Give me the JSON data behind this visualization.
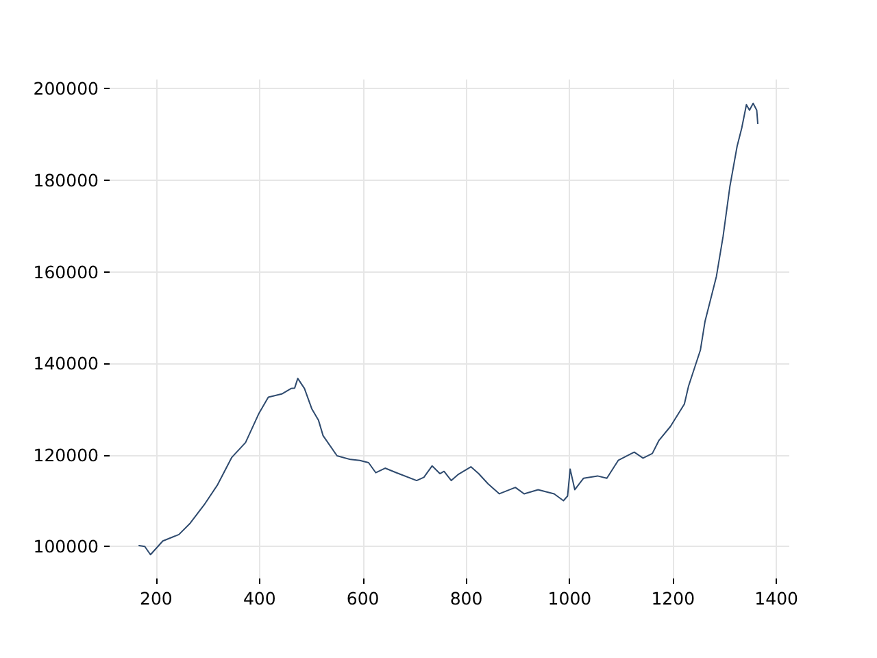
{
  "chart_data": {
    "type": "line",
    "color": "#2e4a6e",
    "grid": true,
    "marker": "none",
    "line_style": "solid",
    "xlim": [
      110,
      1425
    ],
    "xticks": [
      200,
      400,
      600,
      800,
      1000,
      1200,
      1400
    ],
    "ylim": [
      93000,
      202000
    ],
    "yticks": [
      100000,
      120000,
      140000,
      160000,
      180000,
      200000
    ],
    "x": [
      167,
      178,
      189,
      213,
      244,
      266,
      293,
      319,
      346,
      373,
      399,
      417,
      443,
      461,
      468,
      474,
      487,
      501,
      514,
      523,
      550,
      576,
      594,
      611,
      625,
      643,
      665,
      704,
      718,
      734,
      749,
      757,
      771,
      784,
      809,
      824,
      842,
      864,
      895,
      912,
      939,
      970,
      988,
      996,
      1001,
      1010,
      1027,
      1054,
      1072,
      1094,
      1125,
      1142,
      1160,
      1173,
      1195,
      1222,
      1230,
      1253,
      1262,
      1284,
      1297,
      1310,
      1324,
      1333,
      1342,
      1348,
      1355,
      1362,
      1364
    ],
    "values": [
      100200,
      100000,
      98200,
      101200,
      102600,
      105100,
      109100,
      113500,
      119400,
      122700,
      129100,
      132600,
      133300,
      134500,
      134600,
      136700,
      134500,
      130100,
      127600,
      124200,
      119800,
      119000,
      118800,
      118300,
      116100,
      117100,
      116100,
      114400,
      115100,
      117600,
      115900,
      116400,
      114400,
      115700,
      117400,
      115900,
      113700,
      111500,
      112900,
      111500,
      112400,
      111500,
      110000,
      111000,
      116900,
      112400,
      114900,
      115400,
      114900,
      118800,
      120600,
      119300,
      120300,
      123200,
      126200,
      131100,
      135000,
      142900,
      149200,
      159000,
      167800,
      178600,
      187400,
      191400,
      196500,
      195300,
      196800,
      195300,
      192400
    ]
  }
}
